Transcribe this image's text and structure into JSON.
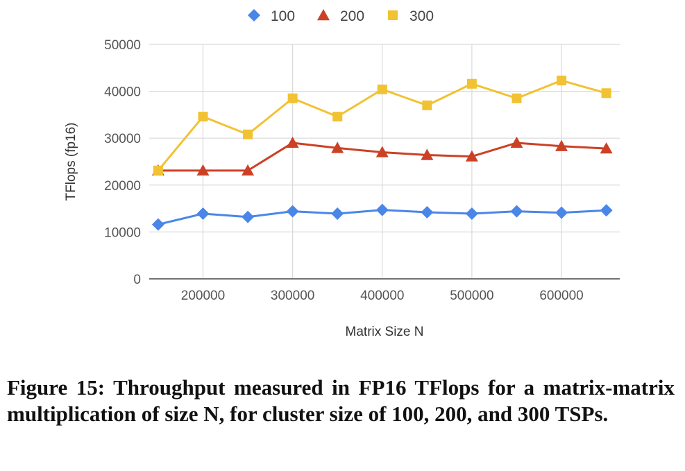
{
  "chart_data": {
    "type": "line",
    "xlabel": "Matrix Size N",
    "ylabel": "TFlops (fp16)",
    "xlim": [
      140000,
      665000
    ],
    "ylim": [
      0,
      50000
    ],
    "x_ticks": [
      200000,
      300000,
      400000,
      500000,
      600000
    ],
    "y_ticks": [
      0,
      10000,
      20000,
      30000,
      40000,
      50000
    ],
    "grid": true,
    "legend_position": "top",
    "x": [
      150000,
      200000,
      250000,
      300000,
      350000,
      400000,
      450000,
      500000,
      550000,
      600000,
      650000
    ],
    "series": [
      {
        "name": "100",
        "color": "#4a86e8",
        "marker": "diamond",
        "values": [
          11600,
          13900,
          13200,
          14400,
          13900,
          14700,
          14200,
          13900,
          14400,
          14100,
          14600
        ]
      },
      {
        "name": "200",
        "color": "#cc4125",
        "marker": "triangle",
        "values": [
          23100,
          23100,
          23100,
          29000,
          27900,
          27000,
          26400,
          26100,
          29000,
          28300,
          27800
        ]
      },
      {
        "name": "300",
        "color": "#f1c232",
        "marker": "square",
        "values": [
          23100,
          34600,
          30800,
          38500,
          34600,
          40400,
          37000,
          41600,
          38500,
          42300,
          39600
        ]
      }
    ]
  },
  "caption": "Figure 15: Throughput measured in FP16 TFlops for a matrix-matrix multiplication of size N, for cluster size of 100, 200, and 300 TSPs."
}
